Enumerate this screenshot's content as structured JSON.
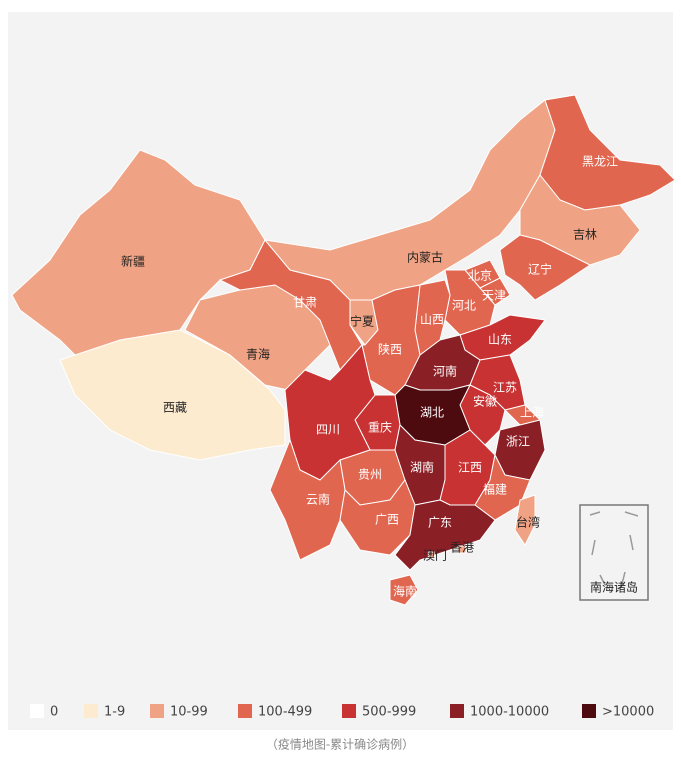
{
  "map": {
    "regions": [
      {
        "name": "新疆",
        "color": "#f0a384"
      },
      {
        "name": "西藏",
        "color": "#fdebd0"
      },
      {
        "name": "青海",
        "color": "#f0a384"
      },
      {
        "name": "甘肃",
        "color": "#e06650"
      },
      {
        "name": "内蒙古",
        "color": "#f0a384"
      },
      {
        "name": "黑龙江",
        "color": "#e06650"
      },
      {
        "name": "吉林",
        "color": "#f0a384"
      },
      {
        "name": "辽宁",
        "color": "#e06650"
      },
      {
        "name": "北京",
        "color": "#e06650"
      },
      {
        "name": "天津",
        "color": "#e06650"
      },
      {
        "name": "河北",
        "color": "#e06650"
      },
      {
        "name": "山西",
        "color": "#e06650"
      },
      {
        "name": "宁夏",
        "color": "#f0a384"
      },
      {
        "name": "陕西",
        "color": "#e06650"
      },
      {
        "name": "山东",
        "color": "#c93232"
      },
      {
        "name": "河南",
        "color": "#8b1f26"
      },
      {
        "name": "江苏",
        "color": "#c93232"
      },
      {
        "name": "安徽",
        "color": "#c93232"
      },
      {
        "name": "上海",
        "color": "#e06650"
      },
      {
        "name": "湖北",
        "color": "#4d0a0f"
      },
      {
        "name": "浙江",
        "color": "#8b1f26"
      },
      {
        "name": "重庆",
        "color": "#c93232"
      },
      {
        "name": "四川",
        "color": "#c93232"
      },
      {
        "name": "贵州",
        "color": "#e06650"
      },
      {
        "name": "云南",
        "color": "#e06650"
      },
      {
        "name": "湖南",
        "color": "#8b1f26"
      },
      {
        "name": "江西",
        "color": "#c93232"
      },
      {
        "name": "福建",
        "color": "#e06650"
      },
      {
        "name": "广西",
        "color": "#e06650"
      },
      {
        "name": "广东",
        "color": "#8b1f26"
      },
      {
        "name": "香港",
        "color": "#f0a384"
      },
      {
        "name": "澳门",
        "color": "#f0a384"
      },
      {
        "name": "台湾",
        "color": "#f0a384"
      },
      {
        "name": "海南",
        "color": "#e06650"
      }
    ],
    "inset_label": "南海诸岛",
    "legend": [
      {
        "label": "0",
        "color": "#ffffff"
      },
      {
        "label": "1-9",
        "color": "#fdebd0"
      },
      {
        "label": "10-99",
        "color": "#f0a384"
      },
      {
        "label": "100-499",
        "color": "#e06650"
      },
      {
        "label": "500-999",
        "color": "#c93232"
      },
      {
        "label": "1000-10000",
        "color": "#8b1f26"
      },
      {
        "label": ">10000",
        "color": "#4d0a0f"
      }
    ]
  },
  "caption": "（疫情地图-累计确诊病例）"
}
